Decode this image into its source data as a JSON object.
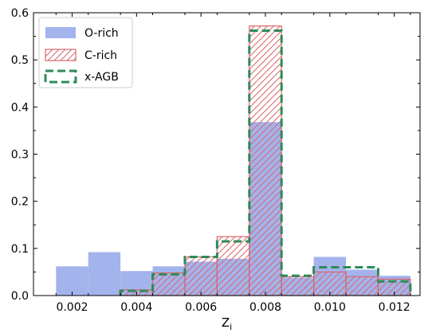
{
  "chart_data": {
    "type": "bar",
    "xlabel_main": "Z",
    "xlabel_sub": "i",
    "ylabel": "",
    "title": "",
    "xlim": [
      0.0008,
      0.0128
    ],
    "ylim": [
      0,
      0.6
    ],
    "x_ticks": [
      0.002,
      0.004,
      0.006,
      0.008,
      0.01,
      0.012
    ],
    "x_tick_labels": [
      "0.002",
      "0.004",
      "0.006",
      "0.008",
      "0.010",
      "0.012"
    ],
    "y_ticks": [
      0,
      0.1,
      0.2,
      0.3,
      0.4,
      0.5,
      0.6
    ],
    "y_tick_labels": [
      "0.0",
      "0.1",
      "0.2",
      "0.3",
      "0.4",
      "0.5",
      "0.6"
    ],
    "bin_edges": [
      0.0015,
      0.0025,
      0.0035,
      0.0045,
      0.0055,
      0.0065,
      0.0075,
      0.0085,
      0.0095,
      0.0105,
      0.0115,
      0.0125
    ],
    "grid": false,
    "legend_position": "top-left",
    "series": [
      {
        "name": "O-rich",
        "style": "filled",
        "color": "#a3b3ec",
        "values": [
          0.062,
          0.092,
          0.052,
          0.062,
          0.072,
          0.078,
          0.368,
          0.038,
          0.082,
          0.055,
          0.042
        ]
      },
      {
        "name": "C-rich",
        "style": "hatched",
        "color": "#d9656b",
        "values": [
          0.0,
          0.0,
          0.012,
          0.048,
          0.082,
          0.125,
          0.572,
          0.04,
          0.05,
          0.04,
          0.035
        ]
      },
      {
        "name": "x-AGB",
        "style": "dashed-step",
        "color": "#2e8b57",
        "values": [
          0.0,
          0.0,
          0.01,
          0.045,
          0.082,
          0.115,
          0.562,
          0.042,
          0.06,
          0.06,
          0.03
        ]
      }
    ]
  }
}
